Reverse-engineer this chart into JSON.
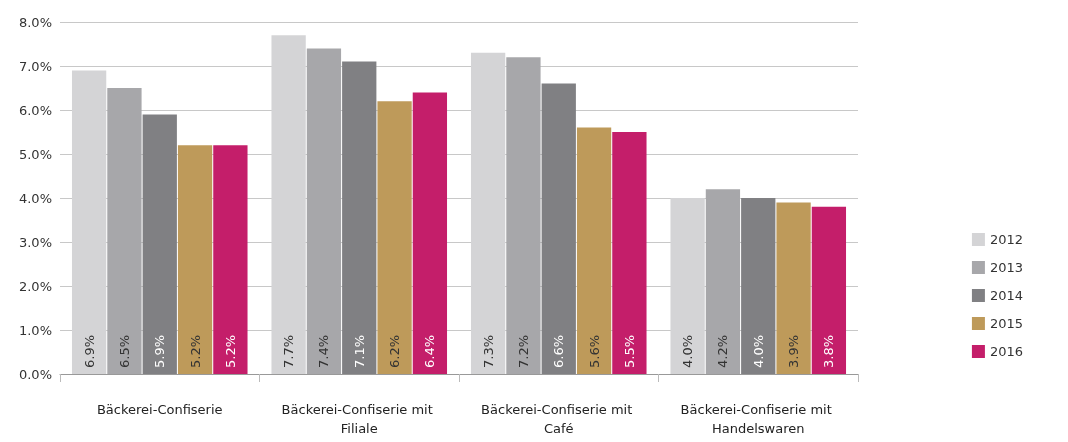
{
  "chart_data": {
    "type": "bar",
    "categories": [
      "Bäckerei-Confiserie",
      "Bäckerei-Confiserie mit Filiale",
      "Bäckerei-Confiserie mit Café",
      "Bäckerei-Confiserie mit Handelswaren"
    ],
    "series": [
      {
        "name": "2012",
        "color": "#d4d4d6",
        "values": [
          6.9,
          7.7,
          7.3,
          4.0
        ],
        "value_labels": [
          "6.9%",
          "7.7%",
          "7.3%",
          "4.0%"
        ]
      },
      {
        "name": "2013",
        "color": "#a7a7aa",
        "values": [
          6.5,
          7.4,
          7.2,
          4.2
        ],
        "value_labels": [
          "6.5%",
          "7.4%",
          "7.2%",
          "4.2%"
        ]
      },
      {
        "name": "2014",
        "color": "#808083",
        "values": [
          5.9,
          7.1,
          6.6,
          4.0
        ],
        "value_labels": [
          "5.9%",
          "7.1%",
          "6.6%",
          "4.0%"
        ]
      },
      {
        "name": "2015",
        "color": "#be9a5a",
        "values": [
          5.2,
          6.2,
          5.6,
          3.9
        ],
        "value_labels": [
          "5.2%",
          "6.2%",
          "5.6%",
          "3.9%"
        ]
      },
      {
        "name": "2016",
        "color": "#c41e6a",
        "values": [
          5.2,
          6.4,
          5.5,
          3.8
        ],
        "value_labels": [
          "5.2%",
          "6.4%",
          "5.5%",
          "3.8%"
        ]
      }
    ],
    "ylim": [
      0,
      8
    ],
    "yticks": [
      {
        "value": 0,
        "label": "0.0%"
      },
      {
        "value": 1,
        "label": "1.0%"
      },
      {
        "value": 2,
        "label": "2.0%"
      },
      {
        "value": 3,
        "label": "3.0%"
      },
      {
        "value": 4,
        "label": "4.0%"
      },
      {
        "value": 5,
        "label": "5.0%"
      },
      {
        "value": 6,
        "label": "6.0%"
      },
      {
        "value": 7,
        "label": "7.0%"
      },
      {
        "value": 8,
        "label": "8.0%"
      }
    ],
    "grid": "y",
    "legend": "right"
  }
}
